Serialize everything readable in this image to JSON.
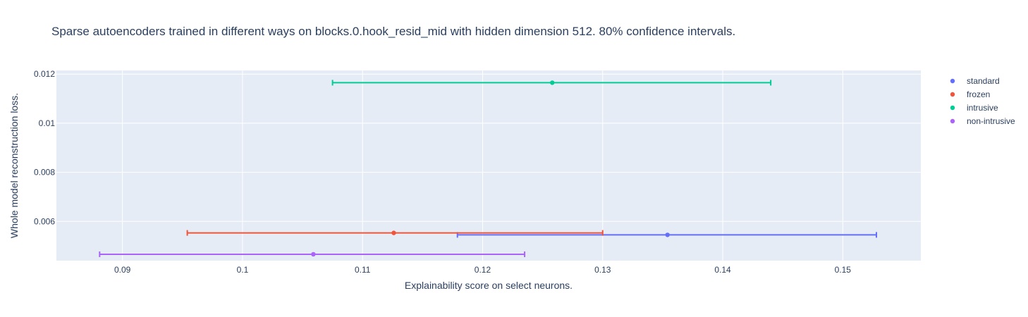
{
  "chart_data": {
    "type": "scatter",
    "title": "Sparse autoencoders trained in different ways on blocks.0.hook_resid_mid with hidden dimension 512. 80% confidence intervals.",
    "xlabel": "Explainability score on select neurons.",
    "ylabel": "Whole model reconstruction loss.",
    "xlim": [
      0.0845,
      0.1565
    ],
    "ylim": [
      0.0044,
      0.01215
    ],
    "xticks": [
      0.09,
      0.1,
      0.11,
      0.12,
      0.13,
      0.14,
      0.15
    ],
    "xtick_labels": [
      "0.09",
      "0.1",
      "0.11",
      "0.12",
      "0.13",
      "0.14",
      "0.15"
    ],
    "yticks": [
      0.006,
      0.008,
      0.01,
      0.012
    ],
    "ytick_labels": [
      "0.006",
      "0.008",
      "0.01",
      "0.012"
    ],
    "grid": true,
    "legend_position": "top-right",
    "background_color": "#e5ecf6",
    "series": [
      {
        "name": "standard",
        "color": "#636efa",
        "x": 0.1354,
        "y": 0.00545,
        "x_err_low": 0.1179,
        "x_err_high": 0.1528
      },
      {
        "name": "frozen",
        "color": "#ef553b",
        "x": 0.1126,
        "y": 0.00553,
        "x_err_low": 0.0954,
        "x_err_high": 0.13
      },
      {
        "name": "intrusive",
        "color": "#00cc96",
        "x": 0.1258,
        "y": 0.01165,
        "x_err_low": 0.1075,
        "x_err_high": 0.144
      },
      {
        "name": "non-intrusive",
        "color": "#ab63fa",
        "x": 0.1059,
        "y": 0.00466,
        "x_err_low": 0.0881,
        "x_err_high": 0.1235
      }
    ]
  }
}
